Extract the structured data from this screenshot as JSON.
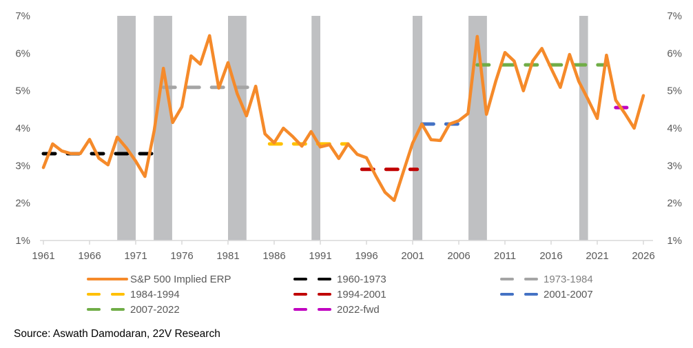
{
  "chart_data": {
    "type": "line",
    "title": "",
    "xlabel": "",
    "ylabel": "",
    "ylim": [
      1,
      7
    ],
    "xlim": [
      1961,
      2026
    ],
    "y_ticks": [
      "1%",
      "2%",
      "3%",
      "4%",
      "5%",
      "6%",
      "7%"
    ],
    "y_tick_values": [
      1,
      2,
      3,
      4,
      5,
      6,
      7
    ],
    "x_ticks": [
      "1961",
      "1966",
      "1971",
      "1976",
      "1981",
      "1986",
      "1991",
      "1996",
      "2001",
      "2006",
      "2011",
      "2016",
      "2021",
      "2026"
    ],
    "x_tick_values": [
      1961,
      1966,
      1971,
      1976,
      1981,
      1986,
      1991,
      1996,
      2001,
      2006,
      2011,
      2016,
      2021,
      2026
    ],
    "secondary_y_axis": true,
    "grid": false,
    "legend_position": "bottom",
    "recession_bands": [
      {
        "start": 1969.0,
        "end": 1971.0
      },
      {
        "start": 1972.95,
        "end": 1974.95
      },
      {
        "start": 1981.0,
        "end": 1983.0
      },
      {
        "start": 1990.05,
        "end": 1991.0
      },
      {
        "start": 2001.0,
        "end": 2002.05
      },
      {
        "start": 2007.05,
        "end": 2009.05
      },
      {
        "start": 2019.05,
        "end": 2020.0
      }
    ],
    "series": [
      {
        "name": "S&P 500 Implied ERP",
        "color": "#F58A2A",
        "style": "solid",
        "x": [
          1961,
          1962,
          1963,
          1964,
          1965,
          1966,
          1967,
          1968,
          1969,
          1970,
          1971,
          1972,
          1973,
          1974,
          1975,
          1976,
          1977,
          1978,
          1979,
          1980,
          1981,
          1982,
          1983,
          1984,
          1985,
          1986,
          1987,
          1988,
          1989,
          1990,
          1991,
          1992,
          1993,
          1994,
          1995,
          1996,
          1997,
          1998,
          1999,
          2000,
          2001,
          2002,
          2003,
          2004,
          2005,
          2006,
          2007,
          2008,
          2009,
          2010,
          2011,
          2012,
          2013,
          2014,
          2015,
          2016,
          2017,
          2018,
          2019,
          2020,
          2021,
          2022,
          2023,
          2024,
          2025,
          2026
        ],
        "values": [
          2.95,
          3.58,
          3.39,
          3.32,
          3.32,
          3.7,
          3.2,
          3.02,
          3.76,
          3.47,
          3.12,
          2.71,
          3.93,
          5.6,
          4.15,
          4.57,
          5.93,
          5.71,
          6.47,
          5.07,
          5.75,
          4.92,
          4.33,
          5.12,
          3.85,
          3.61,
          4.0,
          3.78,
          3.52,
          3.91,
          3.5,
          3.56,
          3.19,
          3.58,
          3.3,
          3.21,
          2.73,
          2.29,
          2.07,
          2.84,
          3.6,
          4.11,
          3.69,
          3.67,
          4.11,
          4.2,
          4.39,
          6.45,
          4.37,
          5.25,
          6.02,
          5.79,
          5.0,
          5.79,
          6.13,
          5.6,
          5.09,
          5.97,
          5.25,
          4.77,
          4.26,
          5.95,
          4.75,
          4.39,
          4.0,
          4.87
        ]
      },
      {
        "name": "1960-1973",
        "color": "#000000",
        "style": "dashed",
        "x": [
          1961,
          1973
        ],
        "values": [
          3.32,
          3.32
        ]
      },
      {
        "name": "1973-1984",
        "color": "#A5A5A5",
        "style": "dashed",
        "x": [
          1974,
          1984
        ],
        "values": [
          5.09,
          5.09
        ]
      },
      {
        "name": "1984-1994",
        "color": "#FFC000",
        "style": "dashed",
        "x": [
          1985.5,
          1994
        ],
        "values": [
          3.58,
          3.58
        ]
      },
      {
        "name": "1994-2001",
        "color": "#C00000",
        "style": "dashed",
        "x": [
          1995.5,
          2001.5
        ],
        "values": [
          2.9,
          2.9
        ]
      },
      {
        "name": "2001-2007",
        "color": "#4472C4",
        "style": "dashed",
        "x": [
          2002,
          2006
        ],
        "values": [
          4.11,
          4.11
        ]
      },
      {
        "name": "2007-2022",
        "color": "#70AD47",
        "style": "dashed",
        "x": [
          2008,
          2022
        ],
        "values": [
          5.69,
          5.69
        ]
      },
      {
        "name": "2022-fwd",
        "color": "#C000C0",
        "style": "dashed",
        "x": [
          2023,
          2024.2
        ],
        "values": [
          4.55,
          4.55
        ]
      }
    ]
  },
  "legend": [
    {
      "label": "S&P 500 Implied ERP",
      "color": "#F58A2A",
      "style": "solid"
    },
    {
      "label": "1960-1973",
      "color": "#000000",
      "style": "dashed"
    },
    {
      "label": "1973-1984",
      "color": "#A5A5A5",
      "style": "dashed"
    },
    {
      "label": "1984-1994",
      "color": "#FFC000",
      "style": "dashed"
    },
    {
      "label": "1994-2001",
      "color": "#C00000",
      "style": "dashed"
    },
    {
      "label": "2001-2007",
      "color": "#4472C4",
      "style": "dashed"
    },
    {
      "label": "2007-2022",
      "color": "#70AD47",
      "style": "dashed"
    },
    {
      "label": "2022-fwd",
      "color": "#C000C0",
      "style": "dashed"
    }
  ],
  "source": "Source: Aswath Damodaran, 22V Research",
  "colors": {
    "recession_band": "#BFC0C2",
    "axis": "#D9D9D9",
    "tick_text": "#595959"
  }
}
